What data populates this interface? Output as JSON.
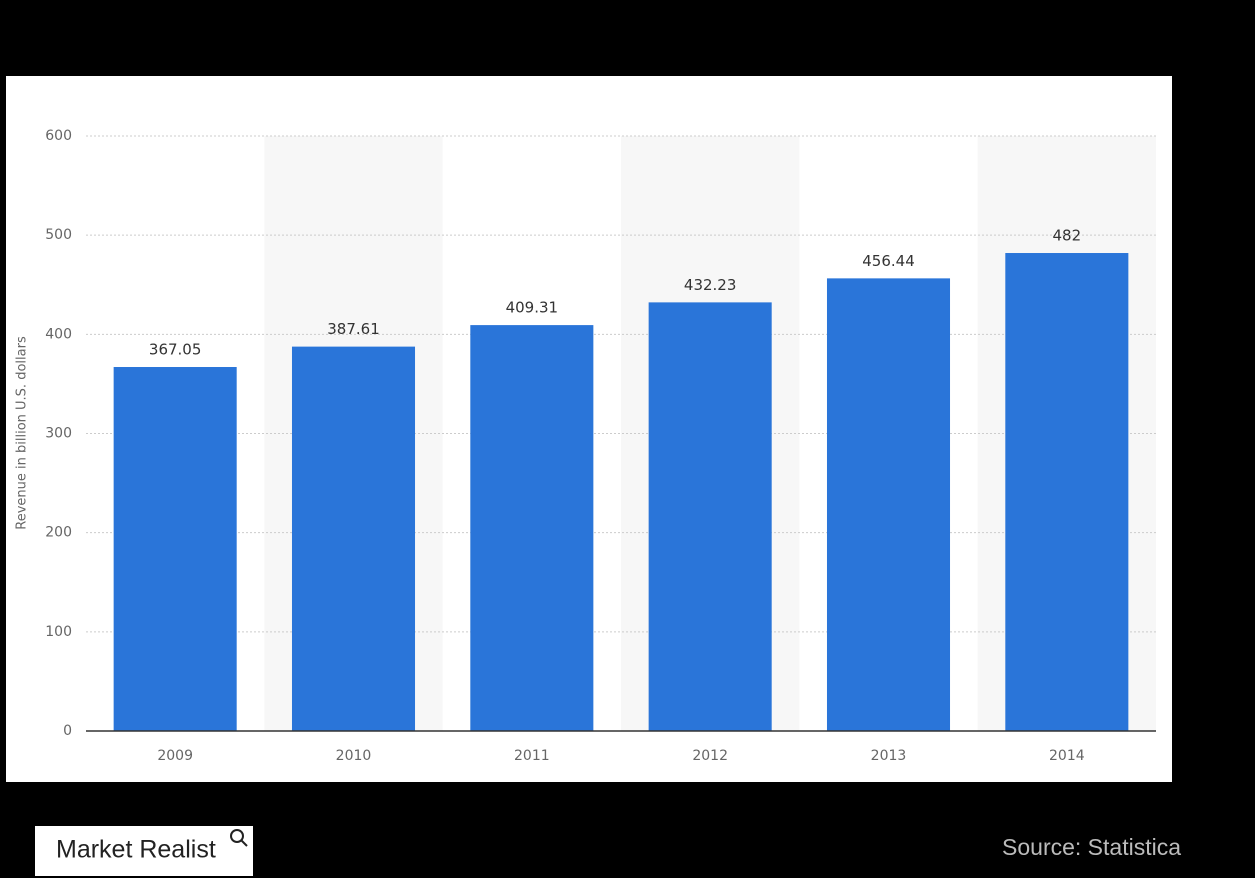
{
  "chart_data": {
    "type": "bar",
    "y_label": "Revenue in billion U.S. dollars",
    "categories": [
      "2009",
      "2010",
      "2011",
      "2012",
      "2013",
      "2014"
    ],
    "values": [
      367.05,
      387.61,
      409.31,
      432.23,
      456.44,
      482
    ],
    "color": "#2a75d9",
    "ylim": [
      0,
      600
    ],
    "yticks": [
      0,
      100,
      200,
      300,
      400,
      500,
      600
    ],
    "grid": true
  },
  "logo": "Market Realist",
  "source": "Source: Statistica"
}
